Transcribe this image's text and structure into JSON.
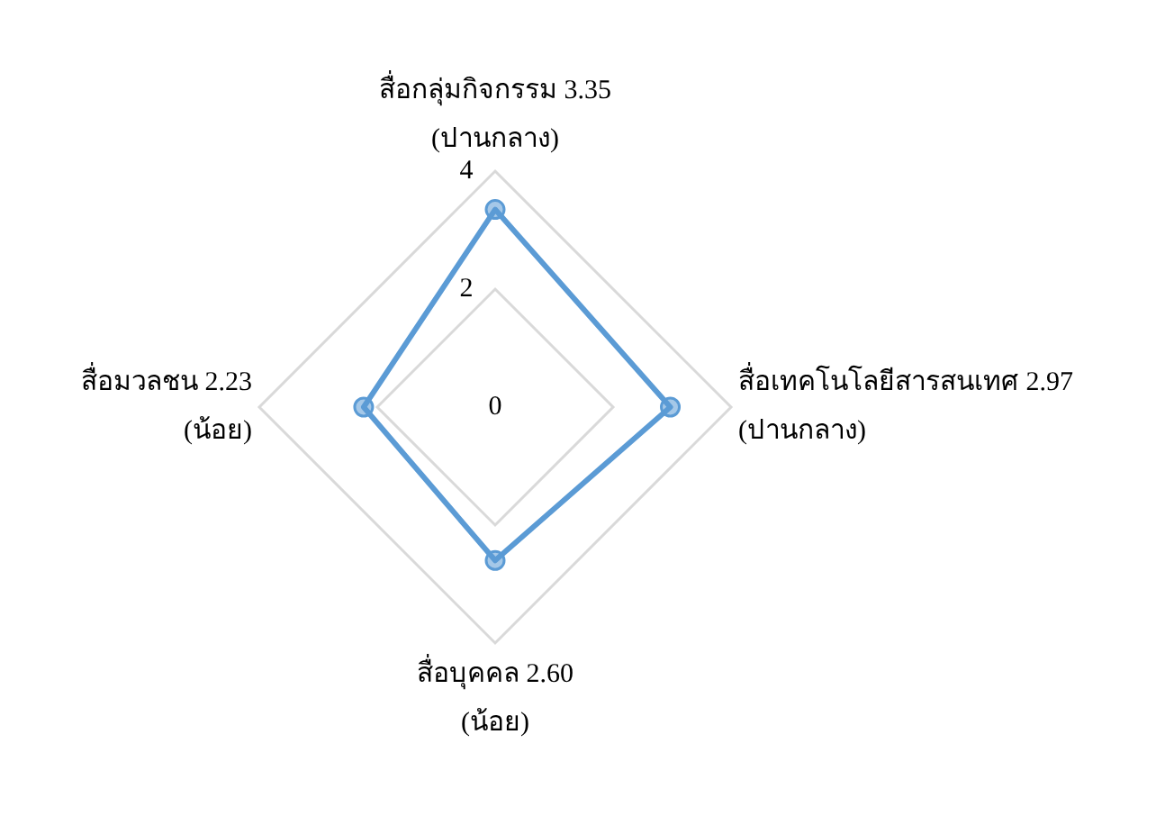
{
  "chart_data": {
    "type": "radar",
    "categories": [
      "สื่อกลุ่มกิจกรรม 3.35\n(ปานกลาง)",
      "สื่อเทคโนโลยีสารสนเทศ 2.97\n(ปานกลาง)",
      "สื่อบุคคล 2.60\n(น้อย)",
      "สื่อมวลชน 2.23\n(น้อย)"
    ],
    "series": [
      {
        "color": "#5b9bd5",
        "values": [
          3.35,
          2.97,
          2.6,
          2.23
        ]
      }
    ],
    "ylim": [
      0,
      4
    ],
    "yticks": [
      0,
      2,
      4
    ],
    "grid": true,
    "legend": false,
    "marker": "circle",
    "line_style": "solid"
  }
}
